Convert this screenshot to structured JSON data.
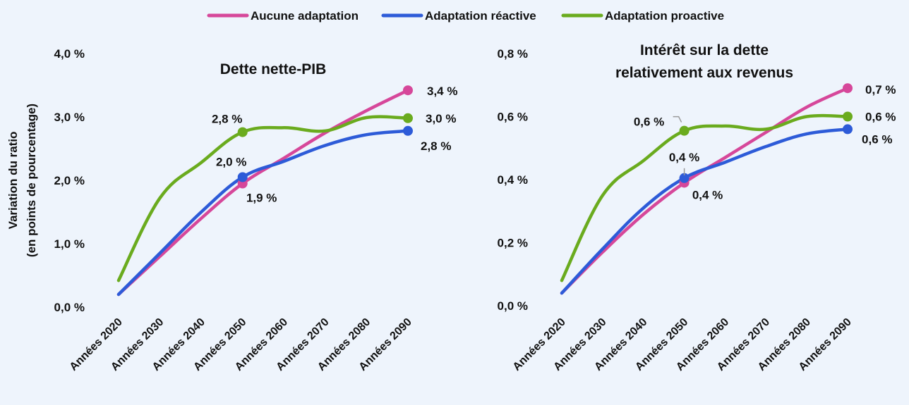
{
  "colors": {
    "aucune": "#d6479a",
    "reactive": "#2d5bd8",
    "proactive": "#6aab1e",
    "background": "#eef4fc"
  },
  "legend": {
    "items": [
      {
        "name": "Aucune adaptation",
        "color": "#d6479a"
      },
      {
        "name": "Adaptation réactive",
        "color": "#2d5bd8"
      },
      {
        "name": "Adaptation proactive",
        "color": "#6aab1e"
      }
    ],
    "placement": "top-center"
  },
  "chart_data": [
    {
      "type": "line",
      "title_lines": [
        "Dette nette-PIB"
      ],
      "ylabel_lines": [
        "Variation du ratio",
        "(en points de pourcentage)"
      ],
      "xlabel": "",
      "categories": [
        "Années 2020",
        "Années 2030",
        "Années 2040",
        "Années 2050",
        "Années 2060",
        "Années 2070",
        "Années 2080",
        "Années 2090"
      ],
      "ylim": [
        0,
        4
      ],
      "yticks": [
        0,
        1,
        2,
        3,
        4
      ],
      "ytick_labels": [
        "0,0 %",
        "1,0 %",
        "2,0 %",
        "3,0 %",
        "4,0 %"
      ],
      "grid": false,
      "series": [
        {
          "name": "Aucune adaptation",
          "color": "#d6479a",
          "values": [
            0.2,
            0.8,
            1.4,
            1.95,
            2.35,
            2.75,
            3.1,
            3.42
          ]
        },
        {
          "name": "Adaptation réactive",
          "color": "#2d5bd8",
          "values": [
            0.2,
            0.85,
            1.5,
            2.05,
            2.3,
            2.55,
            2.72,
            2.78
          ]
        },
        {
          "name": "Adaptation proactive",
          "color": "#6aab1e",
          "values": [
            0.42,
            1.72,
            2.28,
            2.76,
            2.83,
            2.78,
            2.99,
            2.98
          ]
        }
      ],
      "data_labels": [
        {
          "series": 0,
          "index": 3,
          "text": "1,9 %"
        },
        {
          "series": 1,
          "index": 3,
          "text": "2,0 %"
        },
        {
          "series": 2,
          "index": 3,
          "text": "2,8 %"
        },
        {
          "series": 0,
          "index": 7,
          "text": "3,4 %"
        },
        {
          "series": 2,
          "index": 7,
          "text": "3,0 %"
        },
        {
          "series": 1,
          "index": 7,
          "text": "2,8 %"
        }
      ]
    },
    {
      "type": "line",
      "title_lines": [
        "Intérêt sur la dette",
        "relativement aux revenus"
      ],
      "ylabel_lines": [],
      "xlabel": "",
      "categories": [
        "Années 2020",
        "Années 2030",
        "Années 2040",
        "Années 2050",
        "Années 2060",
        "Années 2070",
        "Années 2080",
        "Années 2090"
      ],
      "ylim": [
        0,
        0.8
      ],
      "yticks": [
        0,
        0.2,
        0.4,
        0.6,
        0.8
      ],
      "ytick_labels": [
        "0,0 %",
        "0,2 %",
        "0,4 %",
        "0,6 %",
        "0,8 %"
      ],
      "grid": false,
      "series": [
        {
          "name": "Aucune adaptation",
          "color": "#d6479a",
          "values": [
            0.04,
            0.17,
            0.29,
            0.39,
            0.47,
            0.55,
            0.63,
            0.69
          ]
        },
        {
          "name": "Adaptation réactive",
          "color": "#2d5bd8",
          "values": [
            0.04,
            0.18,
            0.31,
            0.405,
            0.455,
            0.505,
            0.545,
            0.56
          ]
        },
        {
          "name": "Adaptation proactive",
          "color": "#6aab1e",
          "values": [
            0.08,
            0.35,
            0.46,
            0.555,
            0.57,
            0.56,
            0.6,
            0.6
          ]
        }
      ],
      "data_labels": [
        {
          "series": 2,
          "index": 3,
          "text": "0,6 %"
        },
        {
          "series": 1,
          "index": 3,
          "text": "0,4 %"
        },
        {
          "series": 0,
          "index": 3,
          "text": "0,4 %"
        },
        {
          "series": 0,
          "index": 7,
          "text": "0,7 %"
        },
        {
          "series": 2,
          "index": 7,
          "text": "0,6 %"
        },
        {
          "series": 1,
          "index": 7,
          "text": "0,6 %"
        }
      ]
    }
  ]
}
